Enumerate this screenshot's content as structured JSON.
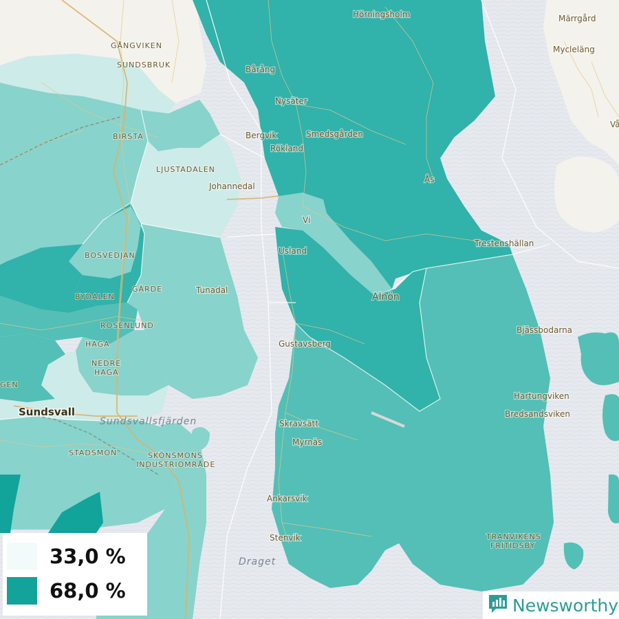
{
  "map": {
    "places": [
      {
        "name": "Hörningsholm",
        "id": "horningsholm"
      },
      {
        "name": "Märrgård",
        "id": "marrgard"
      },
      {
        "name": "Mycleläng",
        "id": "myclelang"
      },
      {
        "name": "Våg",
        "id": "vag"
      },
      {
        "name": "Bårång",
        "id": "barang"
      },
      {
        "name": "Nysäter",
        "id": "nysater"
      },
      {
        "name": "Bergvik",
        "id": "bergvik"
      },
      {
        "name": "Smedsgården",
        "id": "smedsgarden"
      },
      {
        "name": "Rökland",
        "id": "rokland"
      },
      {
        "name": "Ås",
        "id": "as"
      },
      {
        "name": "Johannedal",
        "id": "johannedal"
      },
      {
        "name": "Vi",
        "id": "vi"
      },
      {
        "name": "Usland",
        "id": "usland"
      },
      {
        "name": "Trestenshällan",
        "id": "trestenshallan"
      },
      {
        "name": "Tunadal",
        "id": "tunadal"
      },
      {
        "name": "Bjässbodarna",
        "id": "bjassbodarna"
      },
      {
        "name": "Gustavsberg",
        "id": "gustavsberg"
      },
      {
        "name": "Hartungviken",
        "id": "hartungviken"
      },
      {
        "name": "Bredsandsviken",
        "id": "bredsandsviken"
      },
      {
        "name": "Skravsätt",
        "id": "skravsatt"
      },
      {
        "name": "Myrnäs",
        "id": "myrnas"
      },
      {
        "name": "Ankarsvik",
        "id": "ankarsvik"
      },
      {
        "name": "Stenvik",
        "id": "stenvik"
      }
    ],
    "districts": [
      {
        "name": "GÅNGVIKEN",
        "id": "gangviken"
      },
      {
        "name": "SUNDSBRUK",
        "id": "sundsbruk"
      },
      {
        "name": "BIRSTA",
        "id": "birsta"
      },
      {
        "name": "LJUSTADALEN",
        "id": "ljustadalen"
      },
      {
        "name": "BOSVEDJAN",
        "id": "bosvedjan"
      },
      {
        "name": "GÄRDE",
        "id": "garde"
      },
      {
        "name": "BYDALEN",
        "id": "bydalen"
      },
      {
        "name": "ROSENLUND",
        "id": "rosenlund"
      },
      {
        "name": "HAGA",
        "id": "haga"
      },
      {
        "name": "NEDRE",
        "id": "nedre"
      },
      {
        "name": "HAGA",
        "id": "haga2"
      },
      {
        "name": "GEN",
        "id": "gen"
      },
      {
        "name": "STADSMON",
        "id": "stadsmon"
      },
      {
        "name": "SKÖNSMONS",
        "id": "skonsmons"
      },
      {
        "name": "INDUSTRIOMRÅDE",
        "id": "industriomrade"
      },
      {
        "name": "TRANVIKENS",
        "id": "tranvikens"
      },
      {
        "name": "FRITIDSBY",
        "id": "fritidsby"
      }
    ],
    "city": "Sundsvall",
    "island": "Alnön",
    "waters": [
      {
        "name": "Sundsvallsfjärden",
        "id": "sundsvallsfjarden"
      },
      {
        "name": "Draget",
        "id": "draget"
      }
    ]
  },
  "legend": {
    "min": {
      "label": "33,0 %",
      "color": "#f3fbfa"
    },
    "max": {
      "label": "68,0 %",
      "color": "#12a39b"
    }
  },
  "brand": {
    "name": "Newsworthy",
    "color": "#2a9d95"
  },
  "colors": {
    "water": "#e6e9ee",
    "land": "#f4f2ec",
    "teal_light": "#cdebe8",
    "teal_mid_light": "#88d3cc",
    "teal_mid": "#53bfb6",
    "teal_dark": "#31b2aa",
    "teal_darkest": "#12a39b"
  }
}
